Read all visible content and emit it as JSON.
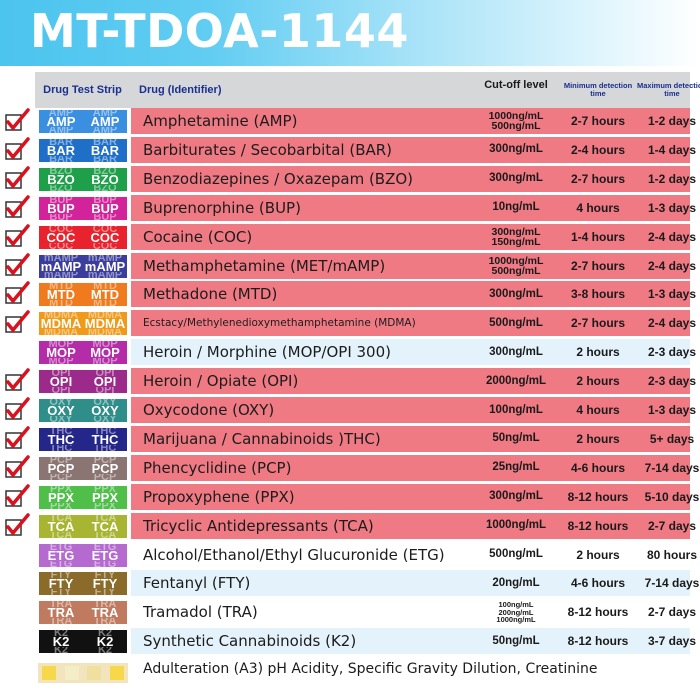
{
  "banner": {
    "title": "MT-TDOA-1144"
  },
  "headers": {
    "strip": "Drug Test Strip",
    "drug": "Drug (Identifier)",
    "cutoff": "Cut-off level",
    "min": "Minimum detection time",
    "max": "Maximum detection time"
  },
  "rows": [
    {
      "code": "AMP",
      "name": "Amphetamine (AMP)",
      "cutoff": [
        "1000ng/mL",
        "500ng/mL"
      ],
      "min": "2-7 hours",
      "max": "1-2 days",
      "checked": true,
      "strip_color": "#3b8fe0"
    },
    {
      "code": "BAR",
      "name": "Barbiturates / Secobarbital (BAR)",
      "cutoff": [
        "300ng/mL"
      ],
      "min": "2-4 hours",
      "max": "1-4 days",
      "checked": true,
      "strip_color": "#1f6fc8"
    },
    {
      "code": "BZO",
      "name": "Benzodiazepines / Oxazepam (BZO)",
      "cutoff": [
        "300ng/mL"
      ],
      "min": "2-7 hours",
      "max": "1-2 days",
      "checked": true,
      "strip_color": "#1ea04a"
    },
    {
      "code": "BUP",
      "name": "Buprenorphine (BUP)",
      "cutoff": [
        "10ng/mL"
      ],
      "min": "4 hours",
      "max": "1-3 days",
      "checked": true,
      "strip_color": "#d2239a"
    },
    {
      "code": "COC",
      "name": "Cocaine (COC)",
      "cutoff": [
        "300ng/mL",
        "150ng/mL"
      ],
      "min": "1-4 hours",
      "max": "2-4 days",
      "checked": true,
      "strip_color": "#e8232d"
    },
    {
      "code": "mAMP",
      "name": "Methamphetamine (MET/mAMP)",
      "cutoff": [
        "1000ng/mL",
        "500ng/mL"
      ],
      "min": "2-7 hours",
      "max": "2-4 days",
      "checked": true,
      "strip_color": "#3a3d9c"
    },
    {
      "code": "MTD",
      "name": "Methadone (MTD)",
      "cutoff": [
        "300ng/mL"
      ],
      "min": "3-8 hours",
      "max": "1-3 days",
      "checked": true,
      "strip_color": "#f07a1e"
    },
    {
      "code": "MDMA",
      "name": "Ecstacy/Methylenedioxymethamphetamine (MDMA)",
      "cutoff": [
        "500ng/mL"
      ],
      "min": "2-7 hours",
      "max": "2-4 days",
      "checked": true,
      "strip_color": "#f09a1a",
      "small": true
    },
    {
      "code": "MOP",
      "name": "Heroin / Morphine (MOP/OPI 300)",
      "cutoff": [
        "300ng/mL"
      ],
      "min": "2 hours",
      "max": "2-3 days",
      "checked": false,
      "strip_color": "#b52ca8"
    },
    {
      "code": "OPI",
      "name": "Heroin / Opiate (OPI)",
      "cutoff": [
        "2000ng/mL"
      ],
      "min": "2 hours",
      "max": "2-3 days",
      "checked": true,
      "strip_color": "#9c2a8a"
    },
    {
      "code": "OXY",
      "name": "Oxycodone (OXY)",
      "cutoff": [
        "100ng/mL"
      ],
      "min": "4 hours",
      "max": "1-3 days",
      "checked": true,
      "strip_color": "#2f8e8a"
    },
    {
      "code": "THC",
      "name": "Marijuana / Cannabinoids )THC)",
      "cutoff": [
        "50ng/mL"
      ],
      "min": "2 hours",
      "max": "5+ days",
      "checked": true,
      "strip_color": "#24268a"
    },
    {
      "code": "PCP",
      "name": "Phencyclidine (PCP)",
      "cutoff": [
        "25ng/mL"
      ],
      "min": "4-6 hours",
      "max": "7-14 days",
      "checked": true,
      "strip_color": "#8a7572"
    },
    {
      "code": "PPX",
      "name": "Propoxyphene (PPX)",
      "cutoff": [
        "300ng/mL"
      ],
      "min": "8-12 hours",
      "max": "5-10 days",
      "checked": true,
      "strip_color": "#4fbf4a"
    },
    {
      "code": "TCA",
      "name": "Tricyclic Antidepressants (TCA)",
      "cutoff": [
        "1000ng/mL"
      ],
      "min": "8-12 hours",
      "max": "2-7 days",
      "checked": true,
      "strip_color": "#a7b532"
    },
    {
      "code": "ETG",
      "name": "Alcohol/Ethanol/Ethyl Glucuronide (ETG)",
      "cutoff": [
        "500ng/mL"
      ],
      "min": "2 hours",
      "max": "80 hours",
      "checked": false,
      "strip_color": "#b56ad0"
    },
    {
      "code": "FTY",
      "name": "Fentanyl (FTY)",
      "cutoff": [
        "20ng/mL"
      ],
      "min": "4-6 hours",
      "max": "7-14 days",
      "checked": false,
      "strip_color": "#8b6b2a"
    },
    {
      "code": "TRA",
      "name": "Tramadol (TRA)",
      "cutoff": [
        "100ng/mL",
        "200ng/mL",
        "1000ng/mL"
      ],
      "min": "8-12 hours",
      "max": "2-7 days",
      "checked": false,
      "strip_color": "#c07a60"
    },
    {
      "code": "K2",
      "name": "Synthetic Cannabinoids (K2)",
      "cutoff": [
        "50ng/mL"
      ],
      "min": "8-12 hours",
      "max": "3-7 days",
      "checked": false,
      "strip_color": "#111111"
    }
  ],
  "footer": {
    "text": "Adulteration (A3) pH Acidity, Specific Gravity Dilution, Creatinine"
  }
}
